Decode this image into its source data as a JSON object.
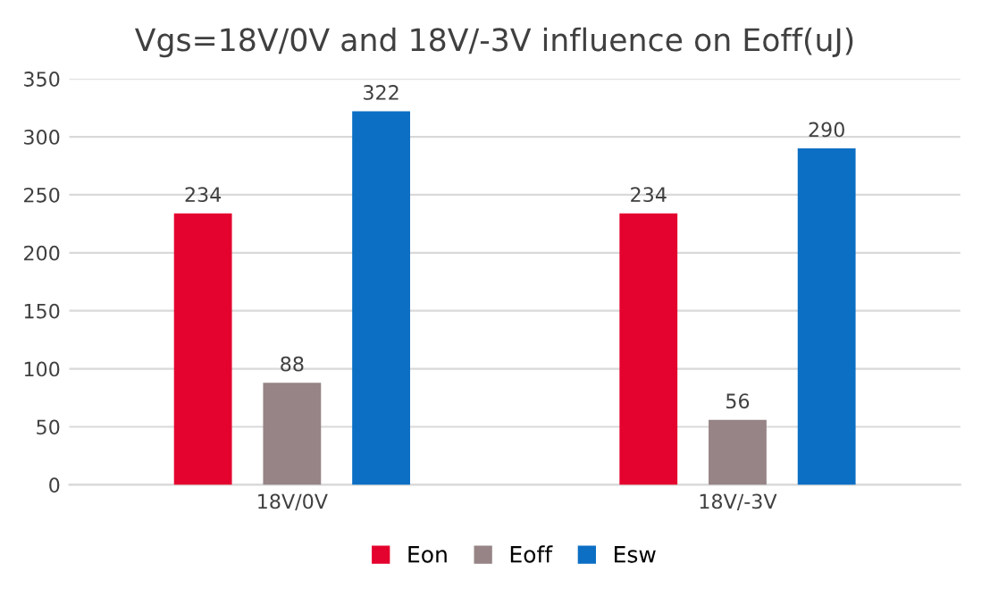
{
  "chart_data": {
    "type": "bar",
    "title": "Vgs=18V/0V and 18V/-3V influence on Eoff(uJ)",
    "categories": [
      "18V/0V",
      "18V/-3V"
    ],
    "series": [
      {
        "name": "Eon",
        "color": "#e4032e",
        "values": [
          234,
          234
        ]
      },
      {
        "name": "Eoff",
        "color": "#968486",
        "values": [
          88,
          56
        ]
      },
      {
        "name": "Esw",
        "color": "#0c6fc4",
        "values": [
          322,
          290
        ]
      }
    ],
    "ylim": [
      0,
      350
    ],
    "yticks": [
      0,
      50,
      100,
      150,
      200,
      250,
      300,
      350
    ],
    "grid": "y",
    "legend": "bottom",
    "data_labels": true
  }
}
